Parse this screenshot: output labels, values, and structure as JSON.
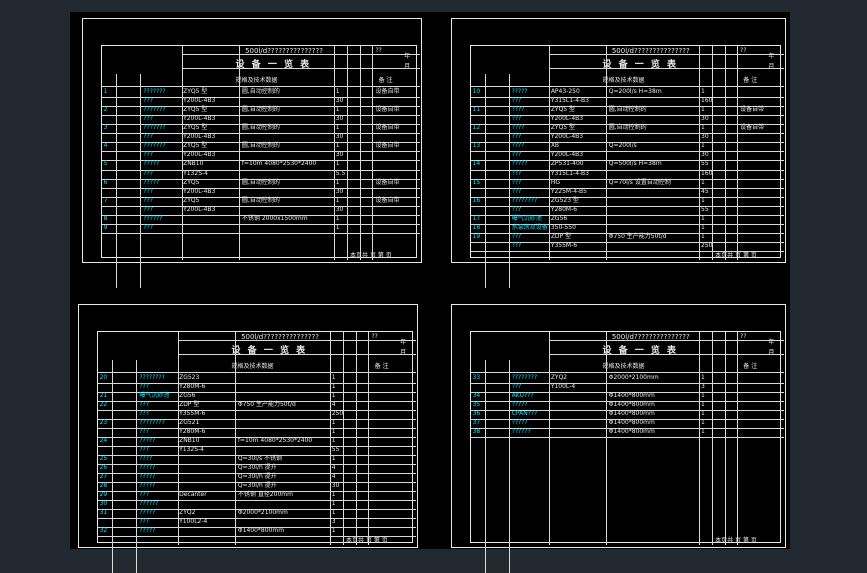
{
  "sheets": [
    {
      "header": {
        "title": "500l/d???????????????",
        "code": "??",
        "sheet_no": "??",
        "year": "年",
        "month": "月",
        "heading": "设 备 一 览 表",
        "spec_col": "规格及技术数据",
        "remark": "备 注"
      },
      "rows": [
        {
          "no": "1",
          "name": "???????",
          "model": "ZYQ5 型",
          "spec": "圆,自动控制的",
          "qty": "1",
          "note": "设备自带"
        },
        {
          "no": "",
          "name": "???",
          "model": "Y200L-4B3",
          "spec": "",
          "qty": "30",
          "note": ""
        },
        {
          "no": "2",
          "name": "???????",
          "model": "ZYQ5 型",
          "spec": "圆,自动控制的",
          "qty": "1",
          "note": "设备自带"
        },
        {
          "no": "",
          "name": "???",
          "model": "Y200L-4B3",
          "spec": "",
          "qty": "30",
          "note": ""
        },
        {
          "no": "3",
          "name": "???????",
          "model": "ZYQ5 型",
          "spec": "圆,自动控制的",
          "qty": "1",
          "note": "设备自带"
        },
        {
          "no": "",
          "name": "???",
          "model": "Y200L-4B3",
          "spec": "",
          "qty": "30",
          "note": ""
        },
        {
          "no": "4",
          "name": "???????",
          "model": "ZYQ5 型",
          "spec": "圆,自动控制的",
          "qty": "1",
          "note": "设备自带"
        },
        {
          "no": "",
          "name": "???",
          "model": "Y200L-4B3",
          "spec": "",
          "qty": "30",
          "note": ""
        },
        {
          "no": "5",
          "name": "?????",
          "model": "ZNB10",
          "spec": "f=10m 4080*2530*2400",
          "qty": "1",
          "note": ""
        },
        {
          "no": "",
          "name": "???",
          "model": "Y132S-4",
          "spec": "",
          "qty": "5.5",
          "note": ""
        },
        {
          "no": "6",
          "name": "?????",
          "model": "ZYQ5",
          "spec": "圆,自动控制的",
          "qty": "1",
          "note": "设备自带"
        },
        {
          "no": "",
          "name": "???",
          "model": "Y200L-4B3",
          "spec": "",
          "qty": "30",
          "note": ""
        },
        {
          "no": "7",
          "name": "???",
          "model": "ZYQ5",
          "spec": "圆,自动控制的",
          "qty": "1",
          "note": "设备自带"
        },
        {
          "no": "",
          "name": "???",
          "model": "Y200L-4B3",
          "spec": "",
          "qty": "30",
          "note": ""
        },
        {
          "no": "8",
          "name": "??????",
          "model": "",
          "spec": "不锈钢 2000x1500mm",
          "qty": "1",
          "note": ""
        },
        {
          "no": "9",
          "name": "???",
          "model": "",
          "spec": "",
          "qty": "1",
          "note": ""
        }
      ],
      "footer": "本页共  页 第  页"
    },
    {
      "header": {
        "title": "500l/d???????????????",
        "code": "??",
        "sheet_no": "??",
        "year": "年",
        "month": "月",
        "heading": "设 备 一 览 表",
        "spec_col": "规格及技术数据",
        "remark": "备 注"
      },
      "rows": [
        {
          "no": "10",
          "name": "?????",
          "model": "AP43-250",
          "spec": "Q=200l/s H=38m",
          "qty": "1",
          "note": ""
        },
        {
          "no": "",
          "name": "???",
          "model": "Y315L1-4-B3",
          "spec": "",
          "qty": "160",
          "note": ""
        },
        {
          "no": "11",
          "name": "????",
          "model": "ZYQ5 型",
          "spec": "圆,自动控制的",
          "qty": "1",
          "note": "设备自带"
        },
        {
          "no": "",
          "name": "???",
          "model": "Y200L-4B3",
          "spec": "",
          "qty": "30",
          "note": ""
        },
        {
          "no": "12",
          "name": "????",
          "model": "ZYQ5 型",
          "spec": "圆,自动控制的",
          "qty": "1",
          "note": "设备自带"
        },
        {
          "no": "",
          "name": "???",
          "model": "Y200L-4B3",
          "spec": "",
          "qty": "30",
          "note": ""
        },
        {
          "no": "13",
          "name": "????",
          "model": "XB",
          "spec": "Q=200l/s",
          "qty": "1",
          "note": ""
        },
        {
          "no": "",
          "name": "???",
          "model": "Y200L-4B3",
          "spec": "",
          "qty": "30",
          "note": ""
        },
        {
          "no": "14",
          "name": "?????",
          "model": "ZP531-400",
          "spec": "Q=500l/s H=38m",
          "qty": "55",
          "note": ""
        },
        {
          "no": "",
          "name": "???",
          "model": "Y315L1-4-B3",
          "spec": "",
          "qty": "160",
          "note": ""
        },
        {
          "no": "15",
          "name": "???",
          "model": "HG",
          "spec": "Q=70l/s 设置自动控制",
          "qty": "1",
          "note": ""
        },
        {
          "no": "",
          "name": "???",
          "model": "Y225M-4-B5",
          "spec": "",
          "qty": "45",
          "note": ""
        },
        {
          "no": "16",
          "name": "????????",
          "model": "ZG523 型",
          "spec": "",
          "qty": "1",
          "note": ""
        },
        {
          "no": "",
          "name": "???",
          "model": "Y280M-6",
          "spec": "",
          "qty": "55",
          "note": ""
        },
        {
          "no": "17",
          "name": "曝气沉砂池",
          "model": "ZG56",
          "spec": "",
          "qty": "1",
          "note": ""
        },
        {
          "no": "18",
          "name": "水泵房及设备",
          "model": "350-550",
          "spec": "",
          "qty": "1",
          "note": ""
        },
        {
          "no": "19",
          "name": "???",
          "model": "ZDP 型",
          "spec": "Φ750 生产能力50t/d",
          "qty": "1",
          "note": ""
        },
        {
          "no": "",
          "name": "???",
          "model": "Y355M-6",
          "spec": "",
          "qty": "250",
          "note": ""
        }
      ],
      "footer": "本页共  页 第  页"
    },
    {
      "header": {
        "title": "500l/d???????????????",
        "code": "??",
        "sheet_no": "??",
        "year": "年",
        "month": "月",
        "heading": "设 备 一 览 表",
        "spec_col": "规格及技术数据",
        "remark": "备 注"
      },
      "rows": [
        {
          "no": "20",
          "name": "????????",
          "model": "ZG523",
          "spec": "",
          "qty": "1",
          "note": ""
        },
        {
          "no": "",
          "name": "???",
          "model": "Y280M-6",
          "spec": "",
          "qty": "1",
          "note": ""
        },
        {
          "no": "21",
          "name": "曝气沉砂池",
          "model": "ZG56",
          "spec": "",
          "qty": "1",
          "note": ""
        },
        {
          "no": "22",
          "name": "???",
          "model": "ZDP 型",
          "spec": "Φ750 生产能力50t/d",
          "qty": "4",
          "note": ""
        },
        {
          "no": "",
          "name": "???",
          "model": "Y355M-6",
          "spec": "",
          "qty": "250",
          "note": ""
        },
        {
          "no": "23",
          "name": "????????",
          "model": "ZG521",
          "spec": "",
          "qty": "1",
          "note": ""
        },
        {
          "no": "",
          "name": "???",
          "model": "Y280M-6",
          "spec": "",
          "qty": "1",
          "note": ""
        },
        {
          "no": "24",
          "name": "?????",
          "model": "ZNB10",
          "spec": "f=10m 4080*2530*2400",
          "qty": "1",
          "note": ""
        },
        {
          "no": "",
          "name": "???",
          "model": "Y132S-4",
          "spec": "",
          "qty": "55",
          "note": ""
        },
        {
          "no": "25",
          "name": "????",
          "model": "",
          "spec": "Q=30l/s 不锈钢",
          "qty": "1",
          "note": ""
        },
        {
          "no": "26",
          "name": "?????",
          "model": "",
          "spec": "Q=30l/h 提升",
          "qty": "4",
          "note": ""
        },
        {
          "no": "27",
          "name": "?????",
          "model": "",
          "spec": "Q=30l/h 提升",
          "qty": "4",
          "note": ""
        },
        {
          "no": "28",
          "name": "?????",
          "model": "",
          "spec": "Q=30l/h 提升",
          "qty": "30",
          "note": ""
        },
        {
          "no": "29",
          "name": "???",
          "model": "Decanter",
          "spec": "不锈钢 直径200mm",
          "qty": "1",
          "note": ""
        },
        {
          "no": "30",
          "name": "??????",
          "model": "",
          "spec": "",
          "qty": "1",
          "note": ""
        },
        {
          "no": "31",
          "name": "?????",
          "model": "ZYQ2",
          "spec": "Φ2000*2100mm",
          "qty": "1",
          "note": ""
        },
        {
          "no": "",
          "name": "???",
          "model": "Y100L2-4",
          "spec": "",
          "qty": "3",
          "note": ""
        },
        {
          "no": "32",
          "name": "?????",
          "model": "",
          "spec": "Φ1400*800mm",
          "qty": "1",
          "note": ""
        }
      ],
      "footer": "本页共  页 第  页"
    },
    {
      "header": {
        "title": "500l/d???????????????",
        "code": "??",
        "sheet_no": "??",
        "year": "年",
        "month": "月",
        "heading": "设 备 一 览 表",
        "spec_col": "规格及技术数据",
        "remark": "备 注"
      },
      "rows": [
        {
          "no": "33",
          "name": "????????",
          "model": "ZYQ2",
          "spec": "Φ2000*2100mm",
          "qty": "1",
          "note": ""
        },
        {
          "no": "",
          "name": "???",
          "model": "Y100L-4",
          "spec": "",
          "qty": "3",
          "note": ""
        },
        {
          "no": "34",
          "name": "AKU???",
          "model": "",
          "spec": "Φ1400*800mm",
          "qty": "1",
          "note": ""
        },
        {
          "no": "35",
          "name": "?????",
          "model": "",
          "spec": "Φ1400*800mm",
          "qty": "1",
          "note": ""
        },
        {
          "no": "36",
          "name": "CPAN???",
          "model": "",
          "spec": "Φ1400*800mm",
          "qty": "1",
          "note": ""
        },
        {
          "no": "37",
          "name": "?????",
          "model": "",
          "spec": "Φ1400*800mm",
          "qty": "1",
          "note": ""
        },
        {
          "no": "38",
          "name": "??????",
          "model": "",
          "spec": "Φ1400*800mm",
          "qty": "1",
          "note": ""
        }
      ],
      "footer": "本页共  页 第  页"
    }
  ]
}
